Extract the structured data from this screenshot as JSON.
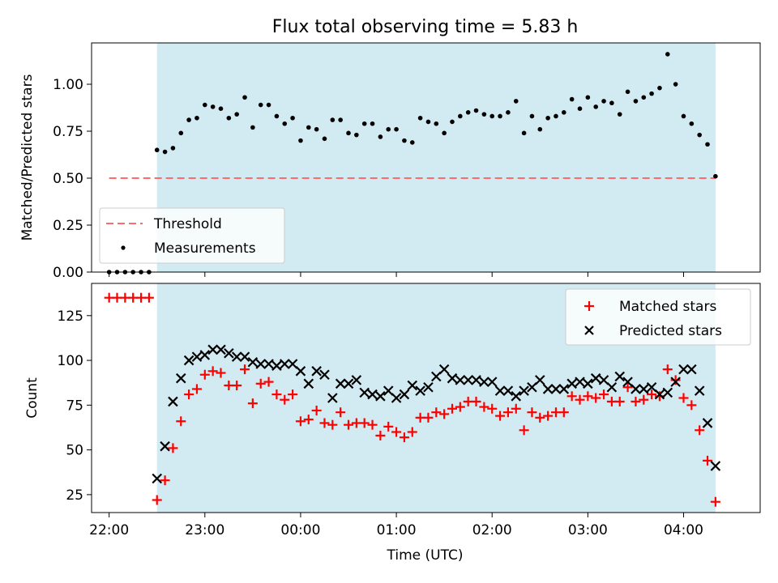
{
  "figure": {
    "title": "Flux total observing time = 5.83 h",
    "xlabel": "Time (UTC)"
  },
  "colors": {
    "observing_window": "#add8e6",
    "threshold": "#ff6b6b",
    "measurements": "#000000",
    "matched": "#ff0000",
    "predicted": "#000000"
  },
  "chart_data": [
    {
      "type": "scatter",
      "panel": "top",
      "ylabel": "Matched/Predicted stars",
      "xlim": [
        "21:49",
        "04:48"
      ],
      "ylim": [
        0,
        1.22
      ],
      "yticks": [
        "0.00",
        "0.25",
        "0.50",
        "0.75",
        "1.00"
      ],
      "grid": false,
      "legend_position": "lower-left",
      "observing_window": [
        "22:30",
        "04:20"
      ],
      "threshold": {
        "name": "Threshold",
        "value": 0.5,
        "x_range": [
          "22:00",
          "04:20"
        ]
      },
      "series": [
        {
          "name": "Measurements",
          "x": [
            "22:00",
            "22:05",
            "22:10",
            "22:15",
            "22:20",
            "22:25",
            "22:30",
            "22:35",
            "22:40",
            "22:45",
            "22:50",
            "22:55",
            "23:00",
            "23:05",
            "23:10",
            "23:15",
            "23:20",
            "23:25",
            "23:30",
            "23:35",
            "23:40",
            "23:45",
            "23:50",
            "23:55",
            "00:00",
            "00:05",
            "00:10",
            "00:15",
            "00:20",
            "00:25",
            "00:30",
            "00:35",
            "00:40",
            "00:45",
            "00:50",
            "00:55",
            "01:00",
            "01:05",
            "01:10",
            "01:15",
            "01:20",
            "01:25",
            "01:30",
            "01:35",
            "01:40",
            "01:45",
            "01:50",
            "01:55",
            "02:00",
            "02:05",
            "02:10",
            "02:15",
            "02:20",
            "02:25",
            "02:30",
            "02:35",
            "02:40",
            "02:45",
            "02:50",
            "02:55",
            "03:00",
            "03:05",
            "03:10",
            "03:15",
            "03:20",
            "03:25",
            "03:30",
            "03:35",
            "03:40",
            "03:45",
            "03:50",
            "03:55",
            "04:00",
            "04:05",
            "04:10",
            "04:15",
            "04:20"
          ],
          "y": [
            0,
            0,
            0,
            0,
            0,
            0,
            0.65,
            0.64,
            0.66,
            0.74,
            0.81,
            0.82,
            0.89,
            0.88,
            0.87,
            0.82,
            0.84,
            0.93,
            0.77,
            0.89,
            0.89,
            0.83,
            0.79,
            0.82,
            0.7,
            0.77,
            0.76,
            0.71,
            0.81,
            0.81,
            0.74,
            0.73,
            0.79,
            0.79,
            0.72,
            0.76,
            0.76,
            0.7,
            0.69,
            0.82,
            0.8,
            0.79,
            0.74,
            0.8,
            0.83,
            0.85,
            0.86,
            0.84,
            0.83,
            0.83,
            0.85,
            0.91,
            0.74,
            0.83,
            0.76,
            0.82,
            0.83,
            0.85,
            0.92,
            0.87,
            0.93,
            0.88,
            0.91,
            0.9,
            0.84,
            0.96,
            0.91,
            0.93,
            0.95,
            0.98,
            1.16,
            1.0,
            0.83,
            0.79,
            0.73,
            0.68,
            0.51
          ]
        }
      ]
    },
    {
      "type": "scatter",
      "panel": "bottom",
      "ylabel": "Count",
      "xlabel": "Time (UTC)",
      "xlim": [
        "21:49",
        "04:48"
      ],
      "ylim": [
        15,
        143
      ],
      "yticks": [
        "25",
        "50",
        "75",
        "100",
        "125"
      ],
      "xticks": [
        "22:00",
        "23:00",
        "00:00",
        "01:00",
        "02:00",
        "03:00",
        "04:00"
      ],
      "grid": false,
      "legend_position": "upper-right",
      "observing_window": [
        "22:30",
        "04:20"
      ],
      "x": [
        "22:00",
        "22:05",
        "22:10",
        "22:15",
        "22:20",
        "22:25",
        "22:30",
        "22:35",
        "22:40",
        "22:45",
        "22:50",
        "22:55",
        "23:00",
        "23:05",
        "23:10",
        "23:15",
        "23:20",
        "23:25",
        "23:30",
        "23:35",
        "23:40",
        "23:45",
        "23:50",
        "23:55",
        "00:00",
        "00:05",
        "00:10",
        "00:15",
        "00:20",
        "00:25",
        "00:30",
        "00:35",
        "00:40",
        "00:45",
        "00:50",
        "00:55",
        "01:00",
        "01:05",
        "01:10",
        "01:15",
        "01:20",
        "01:25",
        "01:30",
        "01:35",
        "01:40",
        "01:45",
        "01:50",
        "01:55",
        "02:00",
        "02:05",
        "02:10",
        "02:15",
        "02:20",
        "02:25",
        "02:30",
        "02:35",
        "02:40",
        "02:45",
        "02:50",
        "02:55",
        "03:00",
        "03:05",
        "03:10",
        "03:15",
        "03:20",
        "03:25",
        "03:30",
        "03:35",
        "03:40",
        "03:45",
        "03:50",
        "03:55",
        "04:00",
        "04:05",
        "04:10",
        "04:15",
        "04:20"
      ],
      "series": [
        {
          "name": "Matched stars",
          "marker": "plus",
          "values": [
            135,
            135,
            135,
            135,
            135,
            135,
            22,
            33,
            51,
            66,
            81,
            84,
            92,
            94,
            93,
            86,
            86,
            95,
            76,
            87,
            88,
            81,
            78,
            81,
            66,
            67,
            72,
            65,
            64,
            71,
            64,
            65,
            65,
            64,
            58,
            63,
            60,
            57,
            60,
            68,
            68,
            71,
            70,
            73,
            74,
            77,
            77,
            74,
            73,
            69,
            71,
            73,
            61,
            71,
            68,
            69,
            71,
            71,
            80,
            78,
            80,
            79,
            81,
            77,
            77,
            85,
            77,
            78,
            81,
            80,
            95,
            89,
            79,
            75,
            61,
            44,
            21
          ]
        },
        {
          "name": "Predicted stars",
          "marker": "x",
          "values": [
            null,
            null,
            null,
            null,
            null,
            null,
            34,
            52,
            77,
            90,
            100,
            102,
            103,
            106,
            106,
            104,
            102,
            102,
            99,
            98,
            98,
            97,
            98,
            98,
            94,
            87,
            94,
            92,
            79,
            87,
            87,
            89,
            82,
            81,
            80,
            83,
            79,
            81,
            86,
            83,
            85,
            91,
            95,
            90,
            89,
            89,
            89,
            88,
            88,
            83,
            83,
            80,
            83,
            85,
            89,
            84,
            84,
            84,
            87,
            88,
            87,
            90,
            89,
            85,
            91,
            88,
            84,
            84,
            85,
            81,
            82,
            88,
            95,
            95,
            83,
            65,
            41
          ]
        }
      ]
    }
  ]
}
